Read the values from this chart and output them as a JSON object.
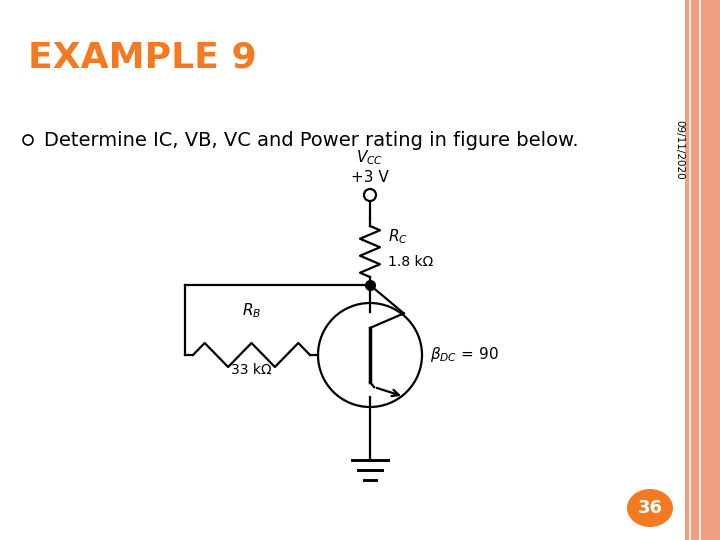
{
  "title": "EXAMPLE 9",
  "title_color": "#F47920",
  "title_fontsize": 26,
  "subtitle": "Determine IC, VB, VC and Power rating in figure below.",
  "subtitle_fontsize": 14,
  "bg_color": "#FFFFFF",
  "border_color": "#F0A080",
  "border_line_color": "#FFFFFF",
  "date_text": "09/11/2020",
  "page_number": "36",
  "page_number_bg": "#F47920",
  "page_number_color": "#FFFFFF",
  "vcc_label": "$V_{CC}$",
  "vcc_value": "+3 V",
  "rc_label": "$R_C$",
  "rc_value": "1.8 kΩ",
  "rb_label": "$R_B$",
  "rb_value": "33 kΩ",
  "beta_label": "$\\beta_{DC}$ = 90",
  "bullet_color": "#000000",
  "lw": 1.6,
  "trans_r": 0.062
}
